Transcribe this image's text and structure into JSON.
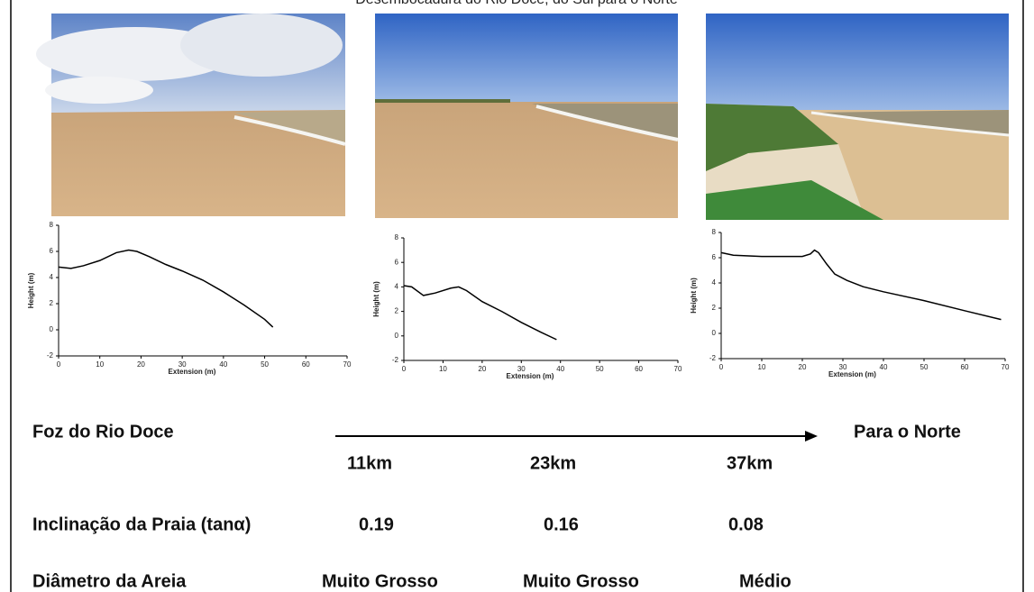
{
  "header": {
    "title": "Desembocadura do Rio Doce, do Sul para o Norte"
  },
  "chart_data": [
    {
      "type": "line",
      "x_label": "Extension (m)",
      "y_label": "Height (m)",
      "color": "#000000",
      "x": [
        0,
        3,
        6,
        10,
        14,
        17,
        19,
        22,
        26,
        30,
        35,
        40,
        45,
        50,
        52
      ],
      "values": [
        4.8,
        4.7,
        4.9,
        5.3,
        5.9,
        6.1,
        6.0,
        5.6,
        5.0,
        4.5,
        3.8,
        2.9,
        1.9,
        0.8,
        0.2
      ],
      "xlim": [
        0,
        70
      ],
      "xticks": [
        0,
        10,
        20,
        30,
        40,
        50,
        60,
        70
      ],
      "ylim": [
        -2,
        8
      ],
      "yticks": [
        -2,
        0,
        2,
        4,
        6,
        8
      ]
    },
    {
      "type": "line",
      "x_label": "Extension (m)",
      "y_label": "Height (m)",
      "color": "#000000",
      "x": [
        0,
        2,
        5,
        8,
        12,
        14,
        16,
        20,
        25,
        30,
        35,
        39
      ],
      "values": [
        4.1,
        4.0,
        3.3,
        3.5,
        3.9,
        4.0,
        3.7,
        2.8,
        2.0,
        1.1,
        0.3,
        -0.3
      ],
      "xlim": [
        0,
        70
      ],
      "xticks": [
        0,
        10,
        20,
        30,
        40,
        50,
        60,
        70
      ],
      "ylim": [
        -2,
        8
      ],
      "yticks": [
        -2,
        0,
        2,
        4,
        6,
        8
      ]
    },
    {
      "type": "line",
      "x_label": "Extension (m)",
      "y_label": "Height (m)",
      "color": "#000000",
      "x": [
        0,
        3,
        10,
        20,
        22,
        23,
        24,
        26,
        28,
        31,
        35,
        40,
        50,
        60,
        69
      ],
      "values": [
        6.4,
        6.2,
        6.1,
        6.1,
        6.3,
        6.6,
        6.4,
        5.5,
        4.7,
        4.2,
        3.7,
        3.3,
        2.6,
        1.8,
        1.1
      ],
      "xlim": [
        0,
        70
      ],
      "xticks": [
        0,
        10,
        20,
        30,
        40,
        50,
        60,
        70
      ],
      "ylim": [
        -2,
        8
      ],
      "yticks": [
        -2,
        0,
        2,
        4,
        6,
        8
      ]
    }
  ],
  "direction": {
    "start": "Foz do Rio Doce",
    "end": "Para o Norte",
    "distances": [
      "11km",
      "23km",
      "37km"
    ]
  },
  "slope": {
    "label": "Inclinação da Praia (tanα)",
    "values": [
      "0.19",
      "0.16",
      "0.08"
    ]
  },
  "sand": {
    "label": "Diâmetro da Areia",
    "values": [
      "Muito Grosso",
      "Muito Grosso",
      "Médio"
    ]
  }
}
